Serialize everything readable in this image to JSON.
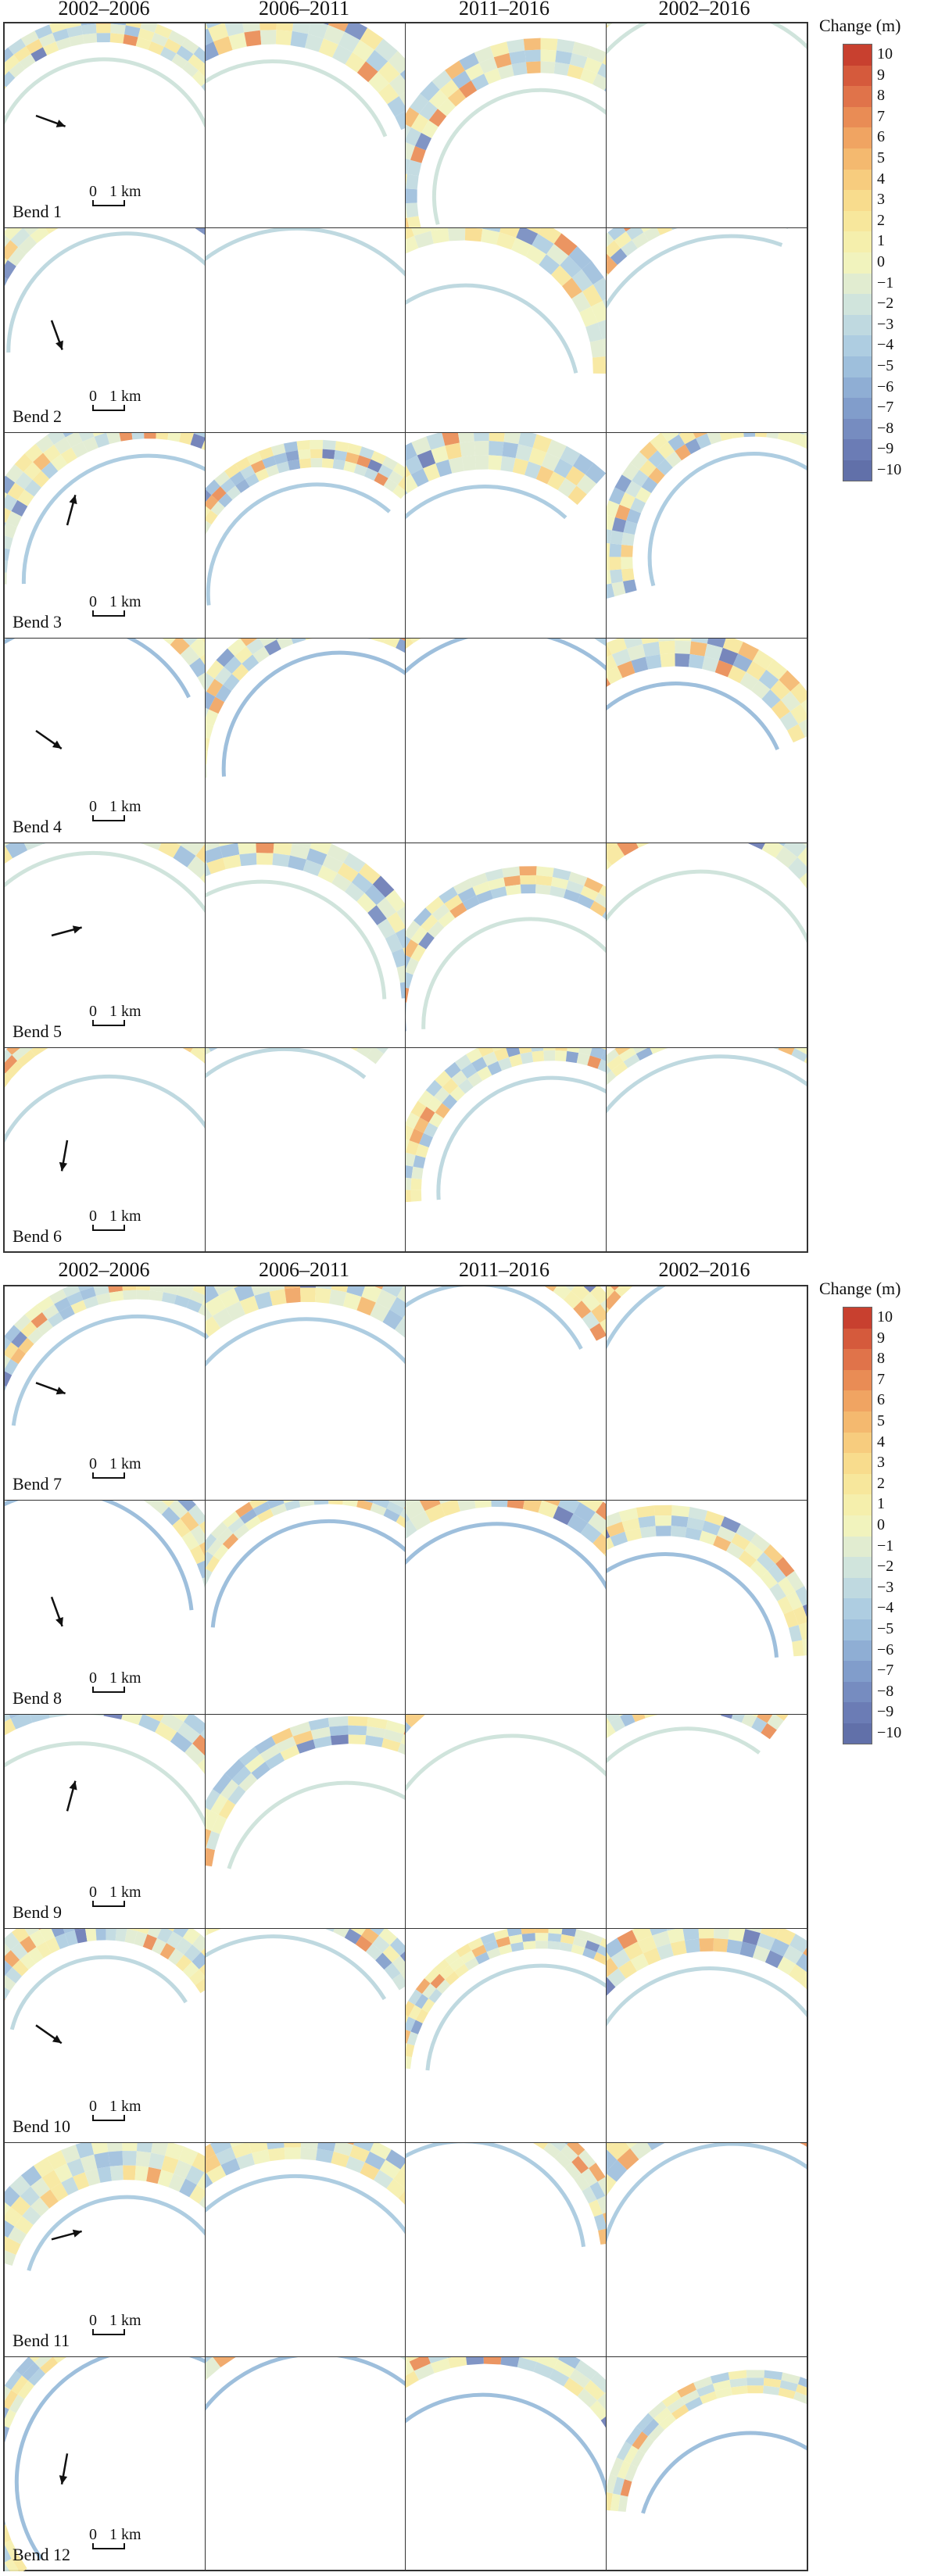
{
  "top": {
    "column_titles": [
      "2002–2006",
      "2006–2011",
      "2011–2016",
      "2002–2016"
    ],
    "bends": [
      {
        "label": "Bend 1",
        "scale": [
          "0",
          "1 km"
        ]
      },
      {
        "label": "Bend 2",
        "scale": [
          "0",
          "1 km"
        ]
      },
      {
        "label": "Bend 3",
        "scale": [
          "0",
          "1 km"
        ]
      },
      {
        "label": "Bend 4",
        "scale": [
          "0",
          "1 km"
        ]
      },
      {
        "label": "Bend 5",
        "scale": [
          "0",
          "1 km"
        ]
      },
      {
        "label": "Bend 6",
        "scale": [
          "0",
          "1 km"
        ]
      }
    ]
  },
  "bottom": {
    "column_titles": [
      "2002–2006",
      "2006–2011",
      "2011–2016",
      "2002–2016"
    ],
    "bends": [
      {
        "label": "Bend 7",
        "scale": [
          "0",
          "1 km"
        ]
      },
      {
        "label": "Bend 8",
        "scale": [
          "0",
          "1 km"
        ]
      },
      {
        "label": "Bend 9",
        "scale": [
          "0",
          "1 km"
        ]
      },
      {
        "label": "Bend 10",
        "scale": [
          "0",
          "1 km"
        ]
      },
      {
        "label": "Bend 11",
        "scale": [
          "0",
          "1 km"
        ]
      },
      {
        "label": "Bend 12",
        "scale": [
          "0",
          "1 km"
        ]
      }
    ]
  },
  "legend": {
    "title": "Change (m)",
    "labels": [
      "10",
      "9",
      "8",
      "7",
      "6",
      "5",
      "4",
      "3",
      "2",
      "1",
      "0",
      "−1",
      "−2",
      "−3",
      "−4",
      "−5",
      "−6",
      "−7",
      "−8",
      "−9",
      "−10"
    ],
    "colors": [
      "#c8402f",
      "#d55a3c",
      "#e0734a",
      "#e98c55",
      "#f0a462",
      "#f4b96f",
      "#f7cc7e",
      "#f8dc8d",
      "#f7e79c",
      "#f5efac",
      "#f1f3bd",
      "#e1ecd0",
      "#d0e4dc",
      "#bfd9e0",
      "#aecde1",
      "#9ebfdc",
      "#8faed4",
      "#819dcb",
      "#768cc0",
      "#6b7cb5",
      "#6170a9"
    ]
  }
}
